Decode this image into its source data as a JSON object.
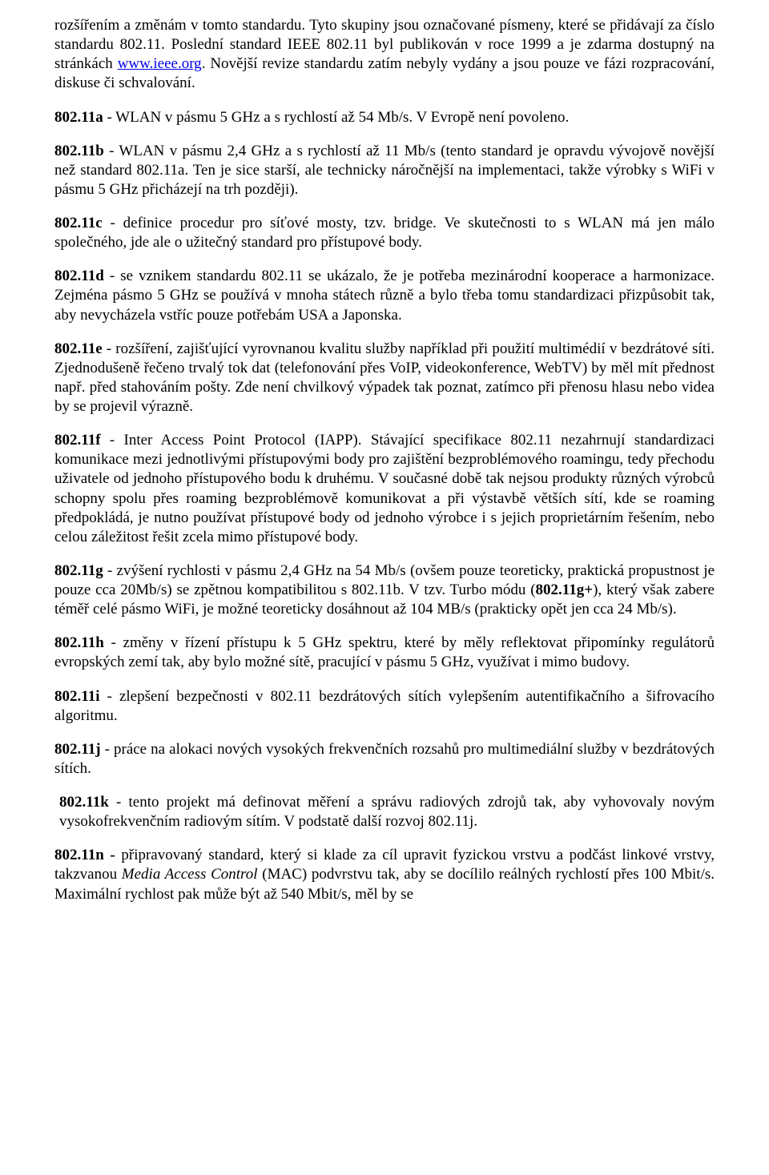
{
  "p0": {
    "t0": "rozšířením a změnám v tomto standardu. Tyto skupiny jsou označované písmeny, které se přidávají za číslo standardu 802.11. Poslední standard IEEE 802.11 byl publikován v roce 1999 a je zdarma dostupný na stránkách ",
    "link": "www.ieee.org",
    "t1": ". Novější revize standardu zatím nebyly vydány a jsou pouze ve fázi rozpracování, diskuse či schvalování."
  },
  "p1": {
    "b": "802.11a",
    "t": " - WLAN v pásmu 5 GHz a s rychlostí až 54 Mb/s. V Evropě není povoleno."
  },
  "p2": {
    "b": "802.11b",
    "t": " - WLAN v pásmu 2,4 GHz a s rychlostí až 11 Mb/s (tento standard je opravdu vývojově novější než standard 802.11a. Ten je sice starší, ale technicky náročnější na implementaci, takže výrobky s WiFi v pásmu 5 GHz přicházejí na trh později)."
  },
  "p3": {
    "b": "802.11c",
    "t": " - definice procedur pro síťové mosty, tzv. bridge. Ve skutečnosti to s WLAN má jen málo společného, jde ale o užitečný standard pro přístupové body."
  },
  "p4": {
    "b": "802.11d",
    "t": " - se vznikem standardu 802.11 se ukázalo, že je potřeba mezinárodní kooperace a harmonizace. Zejména pásmo 5 GHz se používá v mnoha státech různě a bylo třeba tomu standardizaci přizpůsobit tak, aby nevycházela vstříc pouze potřebám USA a Japonska."
  },
  "p5": {
    "b": "802.11e",
    "t": " - rozšíření, zajišťující vyrovnanou kvalitu služby například při použití multimédií v bezdrátové síti. Zjednodušeně řečeno trvalý tok dat (telefonování přes VoIP, videokonference, WebTV) by měl mít přednost např. před stahováním pošty. Zde není chvilkový výpadek tak poznat, zatímco při přenosu hlasu nebo videa by se projevil výrazně."
  },
  "p6": {
    "b": "802.11f",
    "t": " - Inter Access Point Protocol (IAPP). Stávající specifikace 802.11 nezahrnují standardizaci komunikace mezi jednotlivými přístupovými body pro zajištění bezproblémového roamingu, tedy přechodu uživatele od jednoho přístupového bodu k druhému. V současné době tak nejsou produkty různých výrobců schopny spolu přes roaming bezproblémově komunikovat a při výstavbě větších sítí, kde se roaming předpokládá, je nutno používat přístupové body od jednoho výrobce i s jejich proprietárním řešením, nebo celou záležitost řešit zcela mimo přístupové body."
  },
  "p7": {
    "b0": "802.11g",
    "t0": " - zvýšení rychlosti v pásmu 2,4 GHz na 54 Mb/s (ovšem pouze teoreticky, praktická propustnost je pouze cca 20Mb/s) se zpětnou kompatibilitou s 802.11b. V tzv. Turbo módu (",
    "b1": "802.11g+",
    "t1": "), který však zabere téměř celé pásmo WiFi, je možné teoreticky dosáhnout až 104 MB/s (prakticky opět jen cca 24 Mb/s)."
  },
  "p8": {
    "b": "802.11h",
    "t": " - změny v řízení přístupu k 5 GHz spektru, které by měly reflektovat připomínky regulátorů evropských zemí tak, aby bylo možné sítě, pracující v pásmu 5 GHz, využívat i mimo budovy."
  },
  "p9": {
    "b": "802.11i",
    "t": " - zlepšení bezpečnosti v 802.11 bezdrátových sítích vylepšením autentifikačního a šifrovacího algoritmu."
  },
  "p10": {
    "b": "802.11j",
    "t": " - práce na alokaci nových vysokých frekvenčních rozsahů pro multimediální služby v bezdrátových sítích."
  },
  "p11": {
    "b": "802.11k",
    "t": " - tento projekt má definovat měření a správu radiových zdrojů tak, aby vyhovovaly novým vysokofrekvenčním radiovým sítím. V podstatě další rozvoj 802.11j."
  },
  "p12": {
    "b": "802.11n - ",
    "t0": "připravovaný standard, který si klade za cíl upravit fyzickou vrstvu a podčást linkové vrstvy, takzvanou ",
    "i": "Media Access Control",
    "t1": " (MAC) podvrstvu tak, aby se docílilo reálných rychlostí přes 100 Mbit/s. Maximální rychlost pak může být až 540 Mbit/s, měl by se"
  }
}
